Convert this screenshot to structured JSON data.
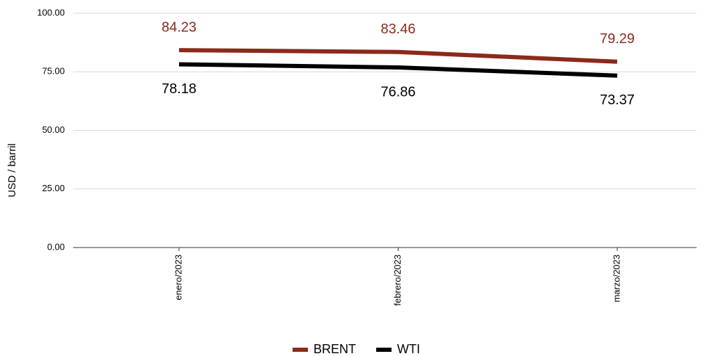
{
  "chart_data": {
    "type": "line",
    "y_label": "USD / barril",
    "categories": [
      "enero/2023",
      "febrero/2023",
      "marzo/2023"
    ],
    "series": [
      {
        "name": "BRENT",
        "color": "#8b2a1a",
        "values": [
          84.23,
          83.46,
          79.29
        ]
      },
      {
        "name": "WTI",
        "color": "#000000",
        "values": [
          78.18,
          76.86,
          73.37
        ]
      }
    ],
    "ylim": [
      0,
      100
    ],
    "yticks": [
      {
        "value": 0,
        "label": "0.00"
      },
      {
        "value": 25,
        "label": "25.00"
      },
      {
        "value": 50,
        "label": "50.00"
      },
      {
        "value": 75,
        "label": "75.00"
      },
      {
        "value": 100,
        "label": "100.00"
      }
    ],
    "grid": true,
    "legend": "bottom"
  }
}
